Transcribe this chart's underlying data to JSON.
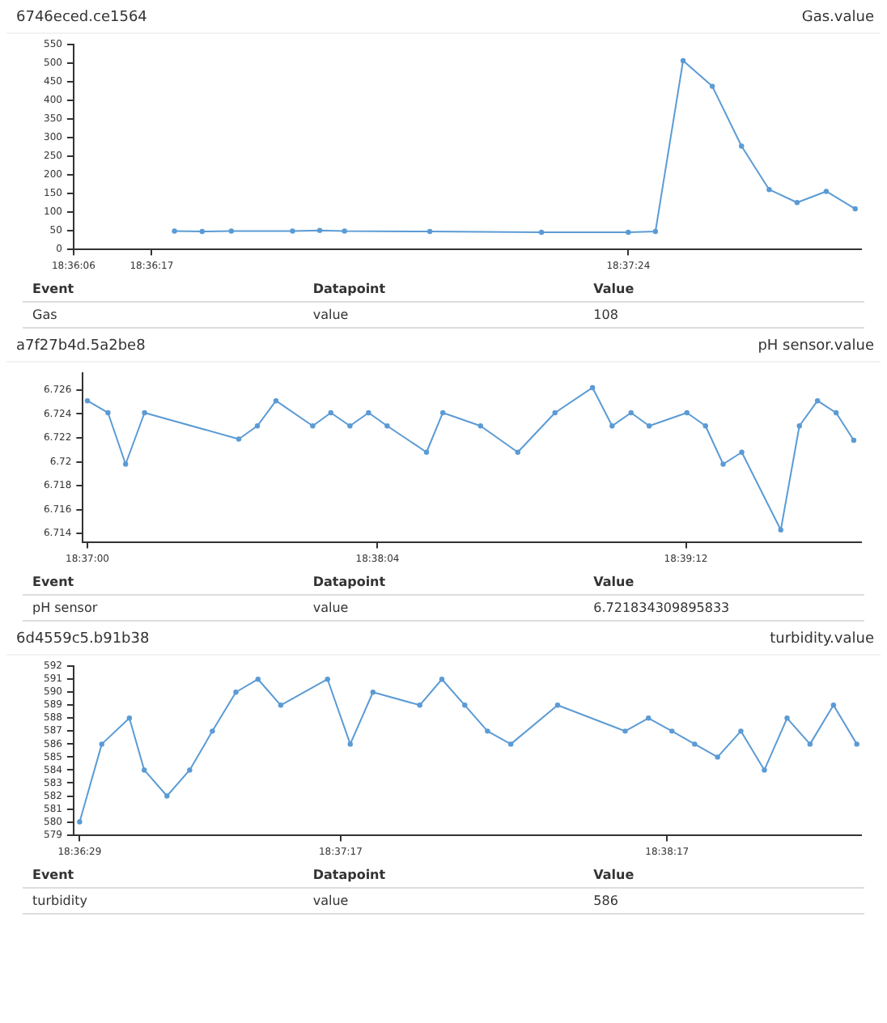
{
  "chart_data": [
    {
      "type": "line",
      "title": "6746eced.ce1564",
      "subtitle": "Gas.value",
      "marker": "circle",
      "grid": false,
      "legend": false,
      "series": [
        {
          "color": "#5b9bd5",
          "x": [
            18.60561,
            18.60669,
            18.60783,
            18.61022,
            18.61128,
            18.61225,
            18.61558,
            18.61994,
            18.62333,
            18.62439,
            18.62547,
            18.62661,
            18.62775,
            18.62883,
            18.62992,
            18.63106,
            18.63219
          ],
          "values": [
            48,
            47,
            48,
            48,
            50,
            48,
            47,
            45,
            45,
            47,
            507,
            438,
            277,
            160,
            125,
            155,
            108
          ]
        }
      ],
      "xlim": [
        18.60167,
        18.63242
      ],
      "xticks": [
        {
          "value": 18.60167,
          "label": "18:36:06"
        },
        {
          "value": 18.60472,
          "label": "18:36:17"
        },
        {
          "value": 18.62333,
          "label": "18:37:24"
        }
      ],
      "ylim": [
        0,
        550
      ],
      "yticks": [
        0,
        50,
        100,
        150,
        200,
        250,
        300,
        350,
        400,
        450,
        500,
        550
      ],
      "annotations": [
        "Event",
        "Datapoint",
        "Value",
        "Gas",
        "value",
        "108"
      ]
    },
    {
      "type": "line",
      "title": "a7f27b4d.5a2be8",
      "subtitle": "pH sensor.value",
      "marker": "circle",
      "grid": false,
      "legend": false,
      "series": [
        {
          "color": "#5b9bd5",
          "x": [
            18.61667,
            18.61793,
            18.61901,
            18.62017,
            18.62594,
            18.62708,
            18.62822,
            18.63047,
            18.63158,
            18.63275,
            18.63389,
            18.63503,
            18.63744,
            18.63844,
            18.64075,
            18.64303,
            18.64531,
            18.64761,
            18.64881,
            18.64997,
            18.65108,
            18.65339,
            18.65453,
            18.65561,
            18.65675,
            18.65914,
            18.66028,
            18.66139,
            18.66253,
            18.66361
          ],
          "values": [
            6.7251,
            6.7241,
            6.7198,
            6.7241,
            6.7219,
            6.723,
            6.7251,
            6.723,
            6.7241,
            6.723,
            6.7241,
            6.723,
            6.7208,
            6.7241,
            6.723,
            6.7208,
            6.7241,
            6.7262,
            6.723,
            6.7241,
            6.723,
            6.7241,
            6.723,
            6.7198,
            6.7208,
            6.7143,
            6.723,
            6.7251,
            6.7241,
            6.7218
          ]
        }
      ],
      "xlim": [
        18.61639,
        18.66406
      ],
      "xticks": [
        {
          "value": 18.61667,
          "label": "18:37:00"
        },
        {
          "value": 18.63444,
          "label": "18:38:04"
        },
        {
          "value": 18.65333,
          "label": "18:39:12"
        }
      ],
      "ylim": [
        6.7133,
        6.7274
      ],
      "yticks": [
        6.714,
        6.716,
        6.718,
        6.72,
        6.722,
        6.724,
        6.726
      ],
      "annotations": [
        "Event",
        "Datapoint",
        "Value",
        "pH sensor",
        "value",
        "6.721834309895833"
      ]
    },
    {
      "type": "line",
      "title": "6d4559c5.b91b38",
      "subtitle": "turbidity.value",
      "marker": "circle",
      "grid": false,
      "legend": false,
      "series": [
        {
          "color": "#5b9bd5",
          "x": [
            18.60806,
            18.60919,
            18.6106,
            18.61136,
            18.61252,
            18.61368,
            18.61484,
            18.61604,
            18.61717,
            18.61833,
            18.62072,
            18.62188,
            18.62304,
            18.62543,
            18.62656,
            18.62773,
            18.62889,
            18.63008,
            18.63247,
            18.63592,
            18.63711,
            18.63831,
            18.63947,
            18.64064,
            18.64183,
            18.64303,
            18.64419,
            18.64536,
            18.64656,
            18.64775
          ],
          "values": [
            580,
            586,
            588,
            584,
            582,
            584,
            587,
            590,
            591,
            589,
            591,
            586,
            590,
            589,
            591,
            589,
            587,
            586,
            589,
            587,
            588,
            587,
            586,
            585,
            587,
            584,
            588,
            586,
            589,
            586
          ]
        }
      ],
      "xlim": [
        18.60775,
        18.64797
      ],
      "xticks": [
        {
          "value": 18.60806,
          "label": "18:36:29"
        },
        {
          "value": 18.62139,
          "label": "18:37:17"
        },
        {
          "value": 18.63806,
          "label": "18:38:17"
        }
      ],
      "ylim": [
        579,
        592
      ],
      "yticks": [
        579,
        580,
        581,
        582,
        583,
        584,
        585,
        586,
        587,
        588,
        589,
        590,
        591,
        592
      ],
      "annotations": [
        "Event",
        "Datapoint",
        "Value",
        "turbidity",
        "value",
        "586"
      ]
    }
  ]
}
